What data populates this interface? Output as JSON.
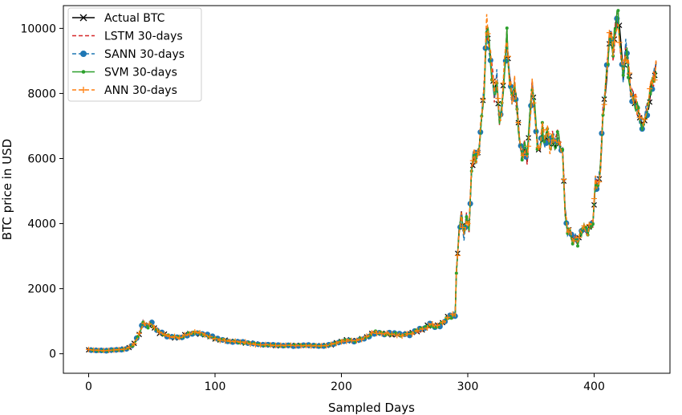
{
  "chart_data": {
    "type": "line",
    "title": "",
    "xlabel": "Sampled Days",
    "ylabel": "BTC price in USD",
    "xlim": [
      -20,
      460
    ],
    "ylim": [
      -600,
      10700
    ],
    "x_ticks": [
      0,
      100,
      200,
      300,
      400
    ],
    "y_ticks": [
      0,
      2000,
      4000,
      6000,
      8000,
      10000
    ],
    "legend_position": "top-left",
    "anchor_points": [
      [
        0,
        120
      ],
      [
        5,
        110
      ],
      [
        10,
        95
      ],
      [
        15,
        100
      ],
      [
        20,
        115
      ],
      [
        25,
        130
      ],
      [
        30,
        160
      ],
      [
        35,
        250
      ],
      [
        40,
        600
      ],
      [
        43,
        950
      ],
      [
        46,
        820
      ],
      [
        50,
        900
      ],
      [
        53,
        780
      ],
      [
        56,
        650
      ],
      [
        60,
        580
      ],
      [
        65,
        520
      ],
      [
        70,
        480
      ],
      [
        75,
        550
      ],
      [
        80,
        620
      ],
      [
        85,
        640
      ],
      [
        90,
        600
      ],
      [
        95,
        540
      ],
      [
        100,
        470
      ],
      [
        110,
        400
      ],
      [
        120,
        360
      ],
      [
        130,
        310
      ],
      [
        140,
        270
      ],
      [
        150,
        255
      ],
      [
        160,
        250
      ],
      [
        170,
        260
      ],
      [
        180,
        240
      ],
      [
        190,
        260
      ],
      [
        195,
        320
      ],
      [
        200,
        390
      ],
      [
        205,
        420
      ],
      [
        210,
        400
      ],
      [
        215,
        440
      ],
      [
        220,
        500
      ],
      [
        225,
        660
      ],
      [
        230,
        640
      ],
      [
        240,
        600
      ],
      [
        250,
        580
      ],
      [
        255,
        620
      ],
      [
        260,
        700
      ],
      [
        265,
        760
      ],
      [
        270,
        900
      ],
      [
        275,
        820
      ],
      [
        280,
        950
      ],
      [
        285,
        1150
      ],
      [
        290,
        1180
      ],
      [
        291,
        2500
      ],
      [
        293,
        3700
      ],
      [
        295,
        4300
      ],
      [
        297,
        3600
      ],
      [
        299,
        4200
      ],
      [
        301,
        3800
      ],
      [
        303,
        5700
      ],
      [
        305,
        6100
      ],
      [
        307,
        5900
      ],
      [
        309,
        6300
      ],
      [
        311,
        7400
      ],
      [
        313,
        8200
      ],
      [
        315,
        10100
      ],
      [
        317,
        9500
      ],
      [
        319,
        8700
      ],
      [
        321,
        8000
      ],
      [
        323,
        8500
      ],
      [
        325,
        7200
      ],
      [
        327,
        7600
      ],
      [
        329,
        8800
      ],
      [
        331,
        9700
      ],
      [
        333,
        8500
      ],
      [
        335,
        7800
      ],
      [
        337,
        8300
      ],
      [
        339,
        7500
      ],
      [
        341,
        6500
      ],
      [
        343,
        6000
      ],
      [
        345,
        6400
      ],
      [
        347,
        6000
      ],
      [
        349,
        7200
      ],
      [
        351,
        8200
      ],
      [
        353,
        7500
      ],
      [
        355,
        6500
      ],
      [
        357,
        6300
      ],
      [
        359,
        6900
      ],
      [
        361,
        6500
      ],
      [
        363,
        6800
      ],
      [
        365,
        6300
      ],
      [
        367,
        6700
      ],
      [
        369,
        6400
      ],
      [
        371,
        6700
      ],
      [
        373,
        6400
      ],
      [
        375,
        6300
      ],
      [
        377,
        4400
      ],
      [
        379,
        3700
      ],
      [
        381,
        3800
      ],
      [
        383,
        3500
      ],
      [
        385,
        3600
      ],
      [
        387,
        3400
      ],
      [
        389,
        3700
      ],
      [
        391,
        3800
      ],
      [
        393,
        3900
      ],
      [
        395,
        3700
      ],
      [
        397,
        4000
      ],
      [
        399,
        4000
      ],
      [
        401,
        5300
      ],
      [
        403,
        5100
      ],
      [
        405,
        5700
      ],
      [
        407,
        7400
      ],
      [
        409,
        8100
      ],
      [
        411,
        9200
      ],
      [
        413,
        9900
      ],
      [
        415,
        9300
      ],
      [
        417,
        10100
      ],
      [
        419,
        10300
      ],
      [
        421,
        9500
      ],
      [
        423,
        8500
      ],
      [
        425,
        9400
      ],
      [
        427,
        8800
      ],
      [
        429,
        8000
      ],
      [
        431,
        7900
      ],
      [
        433,
        7700
      ],
      [
        435,
        7400
      ],
      [
        437,
        7200
      ],
      [
        439,
        7000
      ],
      [
        441,
        7400
      ],
      [
        443,
        7600
      ],
      [
        445,
        8200
      ],
      [
        447,
        8500
      ],
      [
        449,
        8800
      ]
    ],
    "series": [
      {
        "name": "Actual BTC",
        "color": "#000000",
        "style": "solid",
        "marker": "x"
      },
      {
        "name": "LSTM 30-days",
        "color": "#d62728",
        "style": "dashed",
        "marker": "none"
      },
      {
        "name": "SANN 30-days",
        "color": "#1f77b4",
        "style": "dashed",
        "marker": "circle"
      },
      {
        "name": "SVM 30-days",
        "color": "#2ca02c",
        "style": "solid",
        "marker": "dot"
      },
      {
        "name": "ANN 30-days",
        "color": "#ff7f0e",
        "style": "dashed",
        "marker": "plus"
      }
    ]
  }
}
